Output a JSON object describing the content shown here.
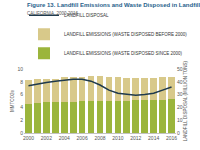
{
  "chart_data": {
    "type": "bar",
    "title": "Figure 13. Landfill Emissions and Waste Disposed in Landfill",
    "subtitle": "CALIFORNIA, 2000-2016",
    "stacked": true,
    "legend": "top",
    "grid": false,
    "x": [
      2000,
      2001,
      2002,
      2003,
      2004,
      2005,
      2006,
      2007,
      2008,
      2009,
      2010,
      2011,
      2012,
      2013,
      2014,
      2015,
      2016
    ],
    "xlim": [
      1999.5,
      2016.5
    ],
    "xticks": [
      2000,
      2002,
      2004,
      2006,
      2008,
      2010,
      2012,
      2014,
      2016
    ],
    "ylabel": "MMTCO2e",
    "ylim": [
      0,
      10
    ],
    "yticks": [
      0,
      2,
      4,
      6,
      8,
      10
    ],
    "y2label": "LANDFILL DISPOSAL (MILLION TONS)",
    "y2lim": [
      0,
      50
    ],
    "y2ticks": [
      0,
      10,
      20,
      30,
      40,
      50
    ],
    "series": [
      {
        "name": "LANDFILL EMISSIONS (WASTE DISPOSED SINCE 2000)",
        "type": "bar",
        "color": "#9bb53c",
        "values": [
          4.6,
          4.7,
          4.8,
          4.8,
          4.9,
          4.9,
          5.0,
          5.0,
          5.0,
          5.0,
          5.0,
          5.0,
          5.1,
          5.1,
          5.1,
          5.2,
          5.3
        ]
      },
      {
        "name": "LANDFILL EMISSIONS (WASTE DISPOSED BEFORE 2000)",
        "type": "bar",
        "color": "#d8c98a",
        "values": [
          3.7,
          3.7,
          3.7,
          3.7,
          3.8,
          3.8,
          3.8,
          3.9,
          3.9,
          3.8,
          3.7,
          3.6,
          3.5,
          3.5,
          3.5,
          3.5,
          3.5
        ]
      },
      {
        "name": "LANDFILL DISPOSAL",
        "type": "line",
        "axis": "y2",
        "color": "#1f3a4d",
        "marker": "none",
        "line_style": "solid",
        "values": [
          37.0,
          38.5,
          39.5,
          40.5,
          41.5,
          42.0,
          42.0,
          40.5,
          37.5,
          33.5,
          31.0,
          30.0,
          29.5,
          30.0,
          31.0,
          33.5,
          36.0
        ]
      }
    ]
  }
}
